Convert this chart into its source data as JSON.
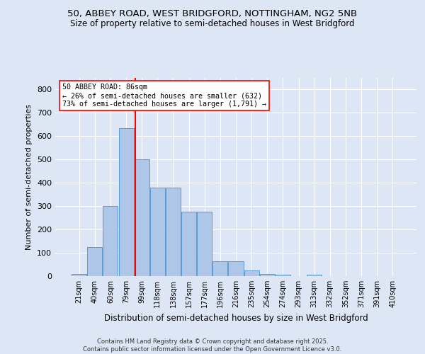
{
  "title1": "50, ABBEY ROAD, WEST BRIDGFORD, NOTTINGHAM, NG2 5NB",
  "title2": "Size of property relative to semi-detached houses in West Bridgford",
  "xlabel": "Distribution of semi-detached houses by size in West Bridgford",
  "ylabel": "Number of semi-detached properties",
  "categories": [
    "21sqm",
    "40sqm",
    "60sqm",
    "79sqm",
    "99sqm",
    "118sqm",
    "138sqm",
    "157sqm",
    "177sqm",
    "196sqm",
    "216sqm",
    "235sqm",
    "254sqm",
    "274sqm",
    "293sqm",
    "313sqm",
    "332sqm",
    "352sqm",
    "371sqm",
    "391sqm",
    "410sqm"
  ],
  "values": [
    10,
    125,
    300,
    635,
    500,
    380,
    380,
    275,
    275,
    65,
    65,
    25,
    10,
    5,
    0,
    5,
    0,
    0,
    0,
    0,
    0
  ],
  "bar_color": "#aec6e8",
  "bar_edge_color": "#5b9bd5",
  "red_line_x": 3.6,
  "red_line_label": "50 ABBEY ROAD: 86sqm",
  "annotation_smaller": "← 26% of semi-detached houses are smaller (632)",
  "annotation_larger": "73% of semi-detached houses are larger (1,791) →",
  "ylim": [
    0,
    850
  ],
  "yticks": [
    0,
    100,
    200,
    300,
    400,
    500,
    600,
    700,
    800
  ],
  "fig_bg_color": "#dce6f5",
  "axes_bg_color": "#dce6f5",
  "footer1": "Contains HM Land Registry data © Crown copyright and database right 2025.",
  "footer2": "Contains public sector information licensed under the Open Government Licence v3.0."
}
